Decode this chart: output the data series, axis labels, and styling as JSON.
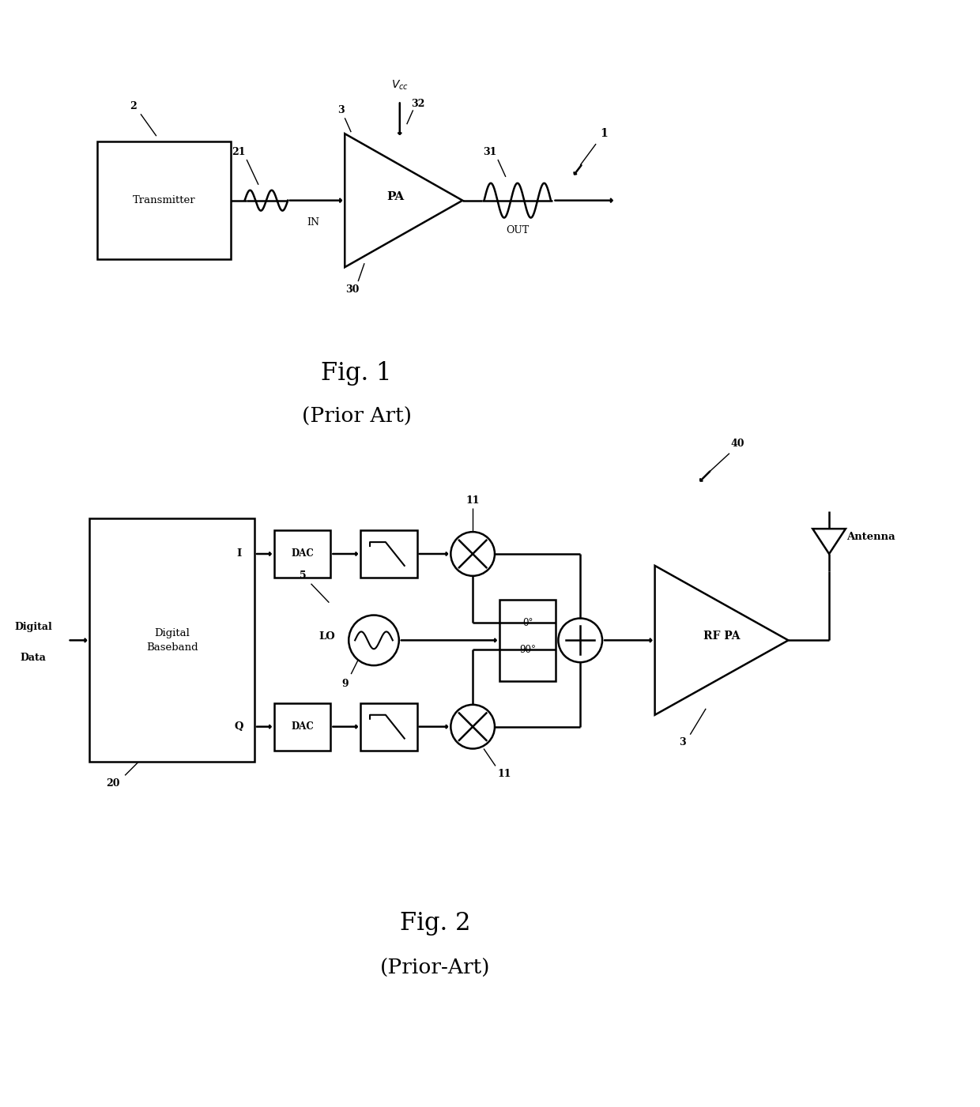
{
  "fig_width": 12.4,
  "fig_height": 14.01,
  "bg_color": "#ffffff",
  "line_color": "#000000",
  "line_width": 1.8,
  "fig1_caption": "Fig. 1",
  "fig1_subcaption": "(Prior Art)",
  "fig2_caption": "Fig. 2",
  "fig2_subcaption": "(Prior-Art)"
}
